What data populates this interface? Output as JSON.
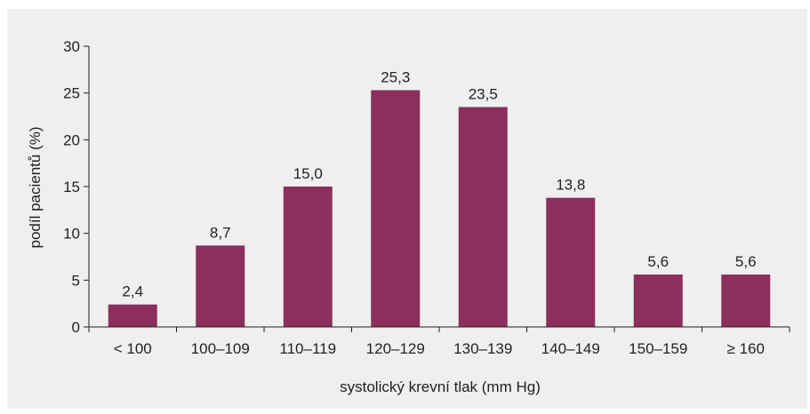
{
  "chart_data": {
    "type": "bar",
    "categories": [
      "< 100",
      "100–109",
      "110–119",
      "120–129",
      "130–139",
      "140–149",
      "150–159",
      "≥ 160"
    ],
    "values": [
      2.4,
      8.7,
      15.0,
      25.3,
      23.5,
      13.8,
      5.6,
      5.6
    ],
    "value_labels": [
      "2,4",
      "8,7",
      "15,0",
      "25,3",
      "23,5",
      "13,8",
      "5,6",
      "5,6"
    ],
    "xlabel": "systolický krevní tlak (mm Hg)",
    "ylabel": "podíl pacientů (%)",
    "ylim": [
      0,
      30
    ],
    "yticks": [
      0,
      5,
      10,
      15,
      20,
      25,
      30
    ],
    "grid": false,
    "colors": {
      "bar": "#8b2f5c",
      "background": "#efefef",
      "axis": "#231f20"
    }
  }
}
